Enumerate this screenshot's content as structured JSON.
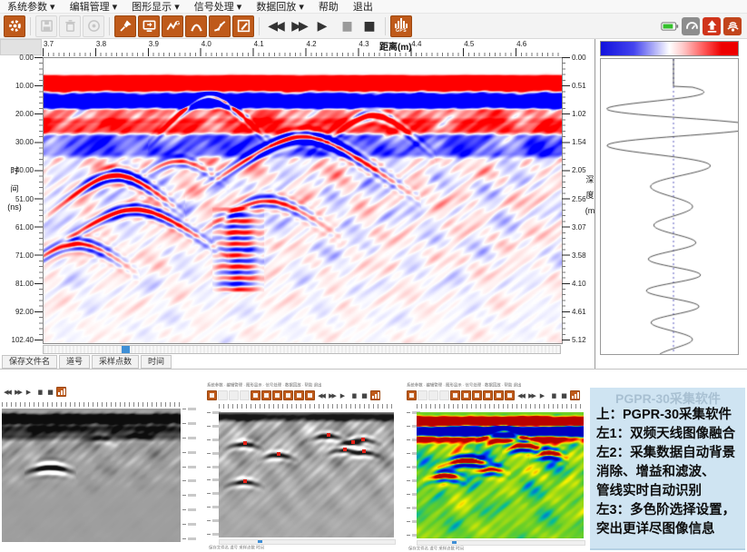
{
  "colors": {
    "accent_orange": "#bf5a1a",
    "accent_red": "#cf3c1d",
    "battery_green": "#35c02c",
    "scroll_thumb": "#3f8fd6",
    "caption_bg": "#cfe4f2",
    "colorbar_left": "#1111dd",
    "colorbar_mid": "#ffffff",
    "colorbar_right": "#ee0000"
  },
  "menu": {
    "items": [
      {
        "name": "menu-system-params",
        "label": "系统参数",
        "dropdown": true
      },
      {
        "name": "menu-edit-manage",
        "label": "编辑管理",
        "dropdown": true
      },
      {
        "name": "menu-graphic-display",
        "label": "图形显示",
        "dropdown": true
      },
      {
        "name": "menu-signal-processing",
        "label": "信号处理",
        "dropdown": true
      },
      {
        "name": "menu-data-playback",
        "label": "数据回放",
        "dropdown": true
      },
      {
        "name": "menu-help",
        "label": "帮助",
        "dropdown": false
      },
      {
        "name": "menu-exit",
        "label": "退出",
        "dropdown": false
      }
    ]
  },
  "toolbar": {
    "buttons": [
      {
        "name": "settings-button",
        "icon": "gear-icon",
        "state": "enabled"
      },
      {
        "name": "save-button",
        "icon": "floppy-icon",
        "state": "disabled"
      },
      {
        "name": "delete-button",
        "icon": "trash-icon",
        "state": "disabled"
      },
      {
        "name": "media-button",
        "icon": "disc-icon",
        "state": "disabled"
      },
      {
        "name": "marker-pin-button",
        "icon": "pin-icon",
        "state": "enabled"
      },
      {
        "name": "display-mode-button",
        "icon": "monitor-icon",
        "state": "enabled"
      },
      {
        "name": "auto-gain-button",
        "icon": "gain-g-icon",
        "state": "enabled"
      },
      {
        "name": "hyperbola-detect-button",
        "icon": "arch-icon",
        "state": "enabled"
      },
      {
        "name": "gain-curve-button",
        "icon": "curve-icon",
        "state": "enabled"
      },
      {
        "name": "edit-mark-button",
        "icon": "brush-icon",
        "state": "enabled"
      }
    ],
    "playback": [
      {
        "name": "rewind-button",
        "glyph": "◀◀",
        "tone": "dark"
      },
      {
        "name": "fast-forward-button",
        "glyph": "▶▶",
        "tone": "dark"
      },
      {
        "name": "play-button",
        "glyph": "▶",
        "tone": "dark"
      },
      {
        "name": "pause-button",
        "glyph": "▮▮",
        "tone": "gray"
      },
      {
        "name": "stop-button",
        "glyph": "■",
        "tone": "dark"
      }
    ],
    "gps_label": "GPS"
  },
  "tray": {
    "icons": [
      {
        "name": "battery-indicator",
        "icon": "battery-icon"
      },
      {
        "name": "device-status-button",
        "icon": "gauge-icon"
      },
      {
        "name": "upload-button",
        "icon": "upload-icon"
      },
      {
        "name": "antenna-button",
        "icon": "antenna-icon"
      }
    ]
  },
  "plot": {
    "x_title": "距离(m)",
    "x_ticks": [
      "3.7",
      "3.8",
      "3.9",
      "4.0",
      "4.1",
      "4.2",
      "4.3",
      "4.4",
      "4.5",
      "4.6"
    ],
    "y_left_title": "时间(ns)",
    "y_left_chars": [
      "时",
      "间",
      "(ns)"
    ],
    "y_left_ticks": [
      "0.00",
      "10.00",
      "20.00",
      "30.00",
      "40.00",
      "51.00",
      "61.00",
      "71.00",
      "81.00",
      "92.00",
      "102.40"
    ],
    "y_right_title": "深度(m)",
    "y_right_chars": [
      "深",
      "度",
      "(m"
    ],
    "y_right_ticks": [
      "0.00",
      "0.51",
      "1.02",
      "1.54",
      "2.05",
      "2.56",
      "3.07",
      "3.58",
      "4.10",
      "4.61",
      "5.12"
    ]
  },
  "status_bar": {
    "fields": [
      "保存文件名",
      "道号",
      "采样点数",
      "时间"
    ]
  },
  "thumbnails": {
    "menu_text": "系统参数 · 编辑管理 · 图形显示 · 信号处理 · 数据回放 · 帮助 退出",
    "status_text": "保存文件名   道号   采样点数   时间",
    "mini2_markers": [
      [
        0.138,
        0.234
      ],
      [
        0.333,
        0.32
      ],
      [
        0.141,
        0.536
      ],
      [
        0.617,
        0.168
      ],
      [
        0.755,
        0.223
      ],
      [
        0.814,
        0.2
      ],
      [
        0.71,
        0.28
      ],
      [
        0.819,
        0.299
      ]
    ]
  },
  "caption": {
    "ghost": "PGPR-30采集软件",
    "lines": [
      "上：PGPR-30采集软件",
      "左1：双频天线图像融合",
      "左2：采集数据自动背景",
      "消除、增益和滤波、",
      "管线实时自动识别",
      "左3：多色阶选择设置，",
      "突出更详尽图像信息"
    ]
  },
  "chart_data": {
    "type": "heatmap",
    "title": "GPR B-scan radargram",
    "xlabel": "距离(m)",
    "x_range": [
      3.7,
      4.6
    ],
    "ylabel_left": "时间(ns)",
    "y_left_range": [
      0,
      102.4
    ],
    "ylabel_right": "深度(m)",
    "y_right_range": [
      0,
      5.12
    ],
    "palette": "blue-white-red",
    "legend_position": "right-colorbar",
    "notable_features": "strong red direct-wave band near 0-10 ns, blue band below, pipe hyperbolas near x=4.0m/10ns-deep, x=4.1m, x=4.2m and cluster of reflectors at left between 40-60 ns"
  }
}
